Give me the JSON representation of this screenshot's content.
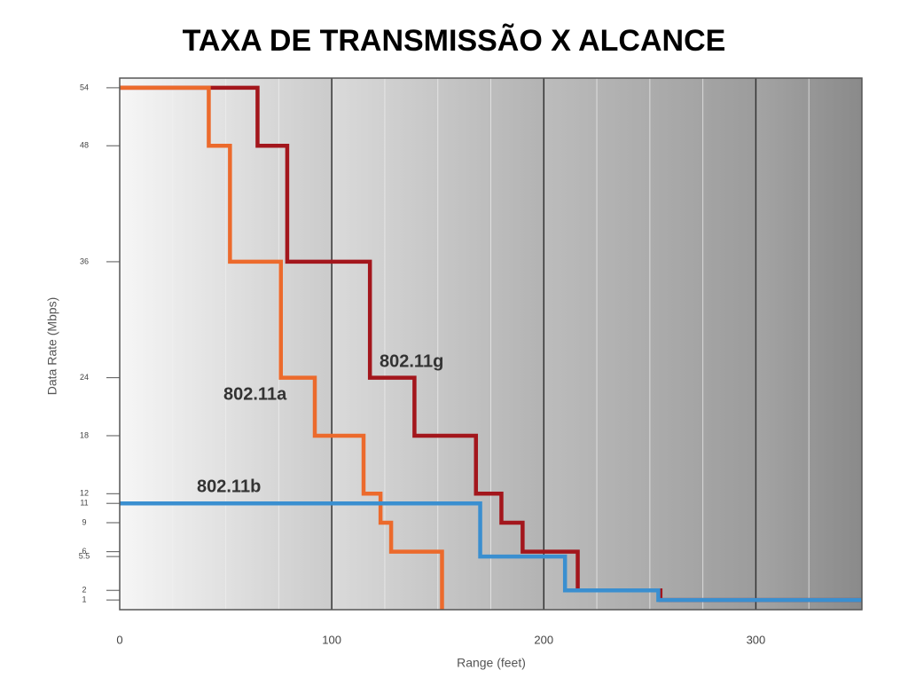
{
  "chart_data": {
    "type": "line",
    "step": "post",
    "title": "TAXA DE TRANSMISSÃO X ALCANCE",
    "xlabel": "Range (feet)",
    "ylabel": "Data Rate (Mbps)",
    "xlim": [
      0,
      350
    ],
    "xticks": [
      0,
      100,
      200,
      300
    ],
    "ylim": [
      0,
      55
    ],
    "yticks": [
      1,
      2,
      5.5,
      6,
      9,
      11,
      12,
      18,
      24,
      36,
      48,
      54
    ],
    "grid": true,
    "series": [
      {
        "name": "802.11g",
        "color": "#a3161c",
        "x": [
          0,
          65,
          79,
          118,
          139,
          168,
          180,
          190,
          216,
          255,
          350
        ],
        "values": [
          54,
          48,
          36,
          24,
          18,
          12,
          9,
          6,
          2,
          1,
          1
        ]
      },
      {
        "name": "802.11a",
        "color": "#ec6a2c",
        "x": [
          0,
          42,
          52,
          76,
          92,
          115,
          123,
          128,
          152
        ],
        "values": [
          54,
          48,
          36,
          24,
          18,
          12,
          9,
          6,
          0
        ]
      },
      {
        "name": "802.11b",
        "color": "#3a8fd0",
        "x": [
          0,
          170,
          210,
          254,
          350
        ],
        "values": [
          11,
          5.5,
          2,
          1,
          1
        ]
      }
    ]
  }
}
